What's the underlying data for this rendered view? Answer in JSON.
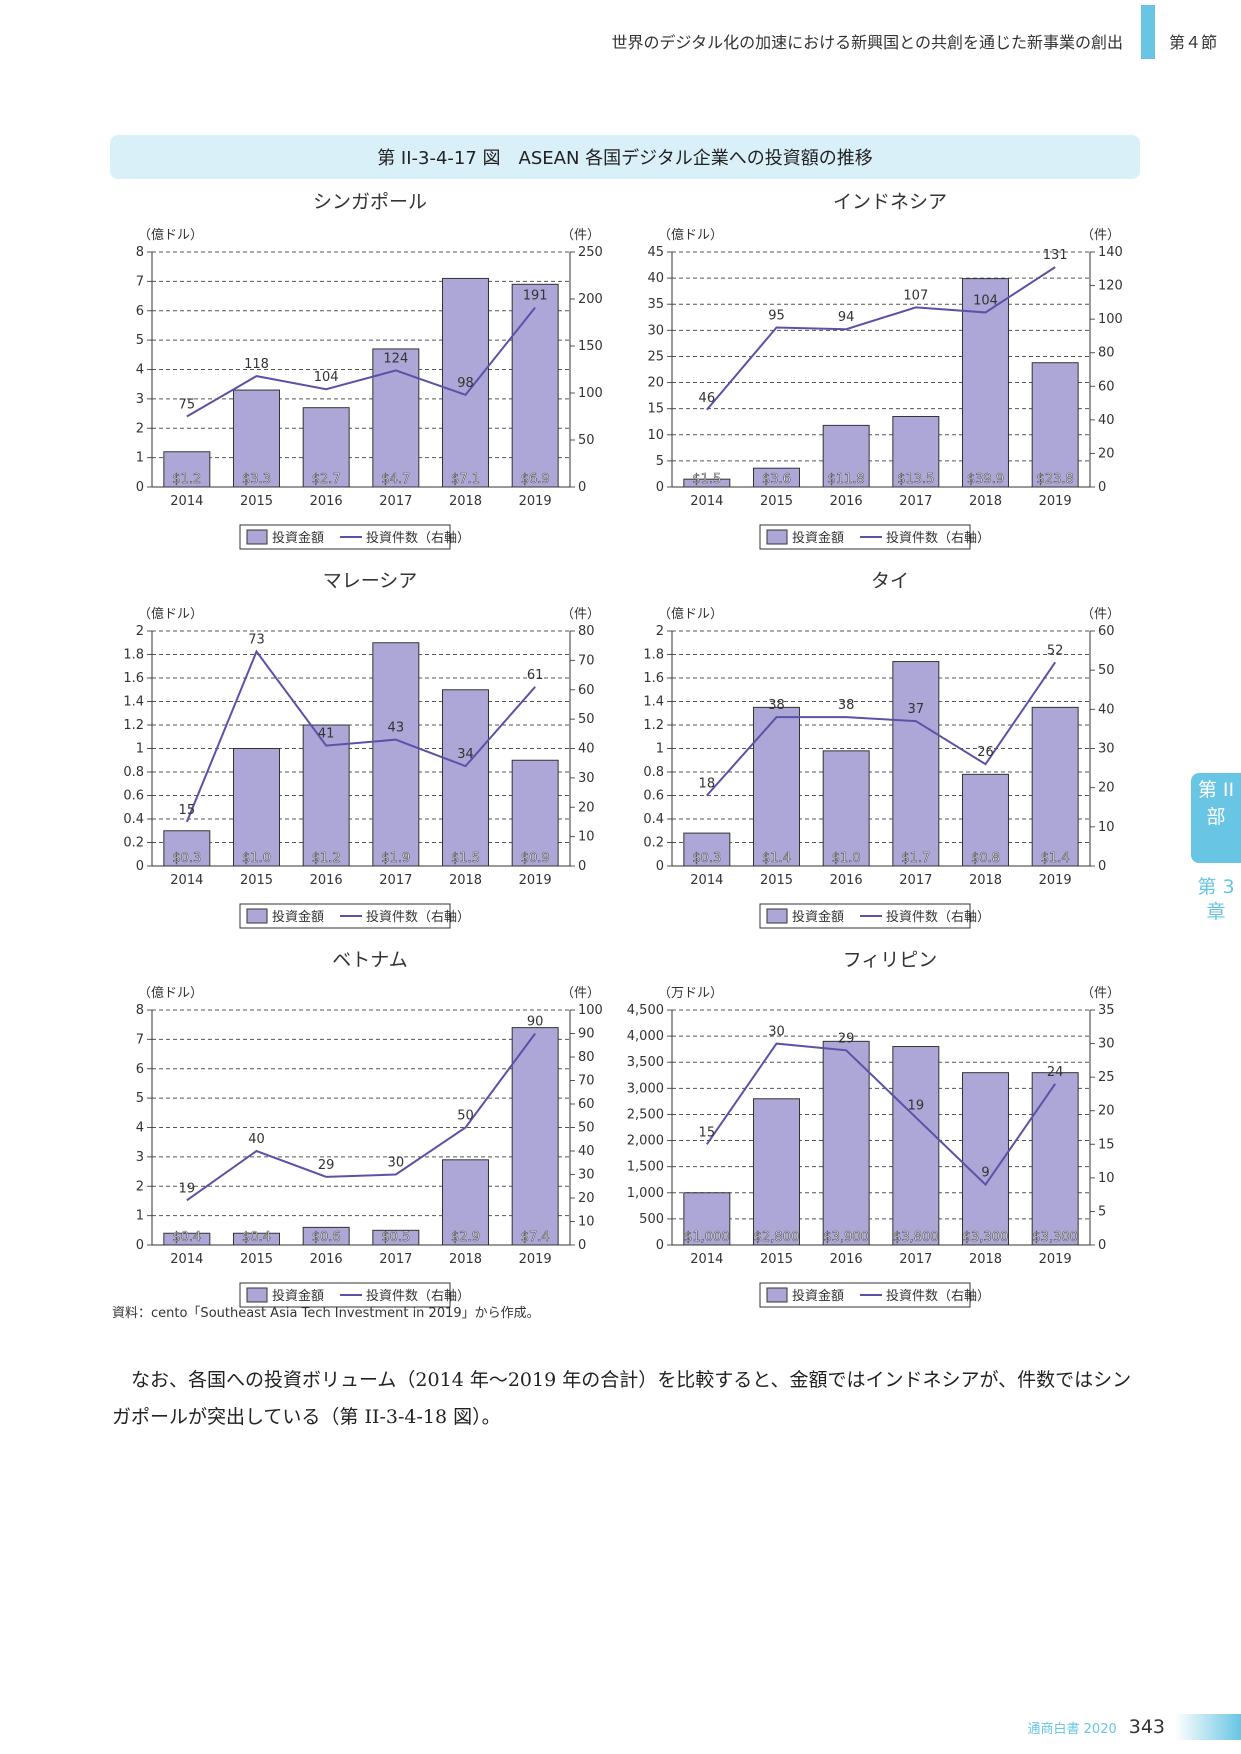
{
  "header": {
    "title": "世界のデジタル化の加速における新興国との共創を通じた新事業の創出",
    "section": "第４節"
  },
  "figure_title": "第 II-3-4-17 図　ASEAN 各国デジタル企業への投資額の推移",
  "source": "資料：cento「Southeast Asia Tech Investment in 2019」から作成。",
  "body_text": "なお、各国への投資ボリューム（2014 年～2019 年の合計）を比較すると、金額ではインドネシアが、件数ではシンガポールが突出している（第 II-3-4-18 図）。",
  "side_tab": {
    "part": "第 II 部",
    "chapter": "第 3 章"
  },
  "footer": {
    "label": "通商白書 2020",
    "page": "343"
  },
  "colors": {
    "bar_fill": "#aca7d6",
    "bar_stroke": "#333333",
    "line": "#5a52a8",
    "accent": "#69c5e4",
    "title_band": "#daf0f9"
  },
  "chart_data": [
    {
      "type": "bar",
      "title": "シンガポール",
      "categories": [
        "2014",
        "2015",
        "2016",
        "2017",
        "2018",
        "2019"
      ],
      "left_unit": "（億ドル）",
      "right_unit": "（件）",
      "ylim": [
        0,
        8
      ],
      "y_ticks": [
        "0",
        "1",
        "2",
        "3",
        "4",
        "5",
        "6",
        "7",
        "8"
      ],
      "y2lim": [
        0,
        250
      ],
      "y2_ticks": [
        "0",
        "50",
        "100",
        "150",
        "200",
        "250"
      ],
      "bar_values": [
        1.2,
        3.3,
        2.7,
        4.7,
        7.1,
        6.9
      ],
      "bar_labels": [
        "$1.2",
        "$3.3",
        "$2.7",
        "$4.7",
        "$7.1",
        "$6.9"
      ],
      "line_values": [
        75,
        118,
        104,
        124,
        98,
        191
      ],
      "legend": {
        "bar": "投資金額",
        "line": "投資件数（右軸）"
      }
    },
    {
      "type": "bar",
      "title": "インドネシア",
      "categories": [
        "2014",
        "2015",
        "2016",
        "2017",
        "2018",
        "2019"
      ],
      "left_unit": "（億ドル）",
      "right_unit": "（件）",
      "ylim": [
        0,
        45
      ],
      "y_ticks": [
        "0",
        "5",
        "10",
        "15",
        "20",
        "25",
        "30",
        "35",
        "40",
        "45"
      ],
      "y2lim": [
        0,
        140
      ],
      "y2_ticks": [
        "0",
        "20",
        "40",
        "60",
        "80",
        "100",
        "120",
        "140"
      ],
      "bar_values": [
        1.5,
        3.6,
        11.8,
        13.5,
        39.9,
        23.8
      ],
      "bar_labels": [
        "$1.5",
        "$3.6",
        "$11.8",
        "$13.5",
        "$39.9",
        "$23.8"
      ],
      "line_values": [
        46,
        95,
        94,
        107,
        104,
        131
      ],
      "legend": {
        "bar": "投資金額",
        "line": "投資件数（右軸）"
      }
    },
    {
      "type": "bar",
      "title": "マレーシア",
      "categories": [
        "2014",
        "2015",
        "2016",
        "2017",
        "2018",
        "2019"
      ],
      "left_unit": "（億ドル）",
      "right_unit": "（件）",
      "ylim": [
        0,
        2
      ],
      "y_ticks": [
        "0",
        "0.2",
        "0.4",
        "0.6",
        "0.8",
        "1",
        "1.2",
        "1.4",
        "1.6",
        "1.8",
        "2"
      ],
      "y2lim": [
        0,
        80
      ],
      "y2_ticks": [
        "0",
        "10",
        "20",
        "30",
        "40",
        "50",
        "60",
        "70",
        "80"
      ],
      "bar_values": [
        0.3,
        1.0,
        1.2,
        1.9,
        1.5,
        0.9
      ],
      "bar_labels": [
        "$0.3",
        "$1.0",
        "$1.2",
        "$1.9",
        "$1.5",
        "$0.9"
      ],
      "line_values": [
        15,
        73,
        41,
        43,
        34,
        61
      ],
      "legend": {
        "bar": "投資金額",
        "line": "投資件数（右軸）"
      }
    },
    {
      "type": "bar",
      "title": "タイ",
      "categories": [
        "2014",
        "2015",
        "2016",
        "2017",
        "2018",
        "2019"
      ],
      "left_unit": "（億ドル）",
      "right_unit": "（件）",
      "ylim": [
        0,
        2
      ],
      "y_ticks": [
        "0",
        "0.2",
        "0.4",
        "0.6",
        "0.8",
        "1",
        "1.2",
        "1.4",
        "1.6",
        "1.8",
        "2"
      ],
      "y2lim": [
        0,
        60
      ],
      "y2_ticks": [
        "0",
        "10",
        "20",
        "30",
        "40",
        "50",
        "60"
      ],
      "bar_values": [
        0.28,
        1.35,
        0.98,
        1.74,
        0.78,
        1.35
      ],
      "bar_labels": [
        "$0.3",
        "$1.4",
        "$1.0",
        "$1.7",
        "$0.8",
        "$1.4"
      ],
      "line_values": [
        18,
        38,
        38,
        37,
        26,
        52
      ],
      "legend": {
        "bar": "投資金額",
        "line": "投資件数（右軸）"
      }
    },
    {
      "type": "bar",
      "title": "ベトナム",
      "categories": [
        "2014",
        "2015",
        "2016",
        "2017",
        "2018",
        "2019"
      ],
      "left_unit": "（億ドル）",
      "right_unit": "（件）",
      "ylim": [
        0,
        8
      ],
      "y_ticks": [
        "0",
        "1",
        "2",
        "3",
        "4",
        "5",
        "6",
        "7",
        "8"
      ],
      "y2lim": [
        0,
        100
      ],
      "y2_ticks": [
        "0",
        "10",
        "20",
        "30",
        "40",
        "50",
        "60",
        "70",
        "80",
        "90",
        "100"
      ],
      "bar_values": [
        0.4,
        0.4,
        0.6,
        0.5,
        2.9,
        7.4
      ],
      "bar_labels": [
        "$0.4",
        "$0.4",
        "$0.6",
        "$0.5",
        "$2.9",
        "$7.4"
      ],
      "line_values": [
        19,
        40,
        29,
        30,
        50,
        90
      ],
      "legend": {
        "bar": "投資金額",
        "line": "投資件数（右軸）"
      }
    },
    {
      "type": "bar",
      "title": "フィリピン",
      "categories": [
        "2014",
        "2015",
        "2016",
        "2017",
        "2018",
        "2019"
      ],
      "left_unit": "（万ドル）",
      "right_unit": "（件）",
      "ylim": [
        0,
        4500
      ],
      "y_ticks": [
        "0",
        "500",
        "1,000",
        "1,500",
        "2,000",
        "2,500",
        "3,000",
        "3,500",
        "4,000",
        "4,500"
      ],
      "y2lim": [
        0,
        35
      ],
      "y2_ticks": [
        "0",
        "5",
        "10",
        "15",
        "20",
        "25",
        "30",
        "35"
      ],
      "bar_values": [
        1000,
        2800,
        3900,
        3800,
        3300,
        3300
      ],
      "bar_labels": [
        "$1,000",
        "$2,800",
        "$3,900",
        "$3,800",
        "$3,300",
        "$3,300"
      ],
      "line_values": [
        15,
        30,
        29,
        19,
        9,
        24
      ],
      "legend": {
        "bar": "投資金額",
        "line": "投資件数（右軸）"
      }
    }
  ]
}
